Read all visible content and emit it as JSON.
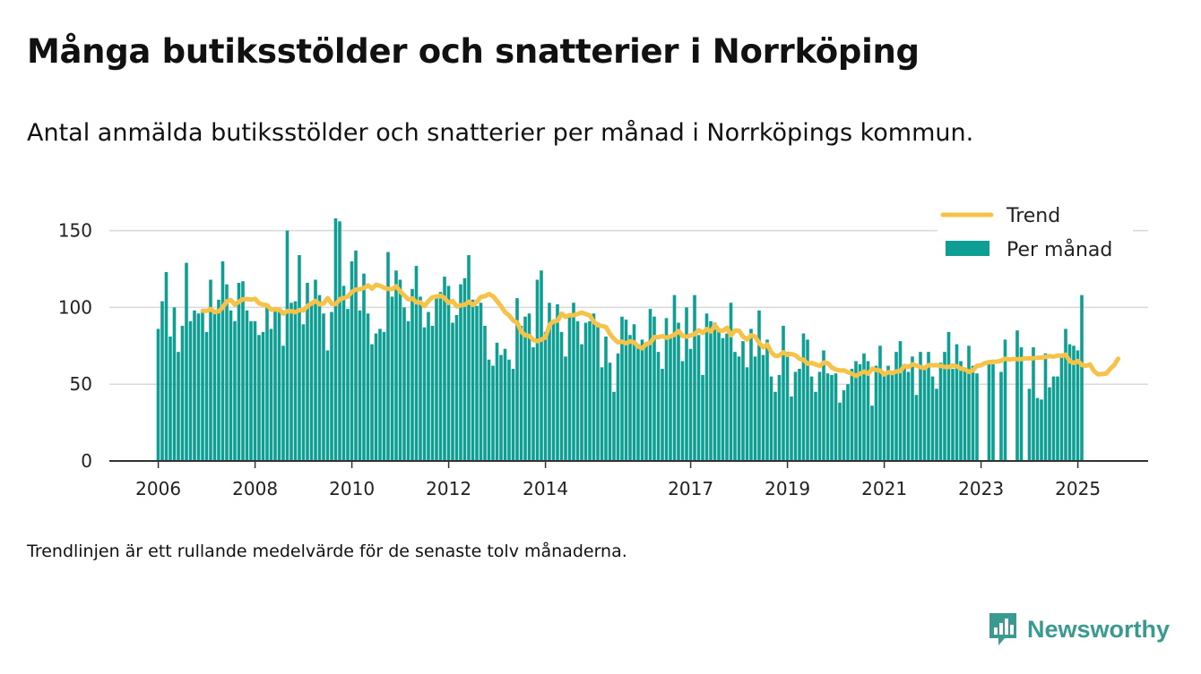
{
  "title": "Många butiksstölder och snatterier i Norrköping",
  "subtitle": "Antal anmälda butiksstölder och snatterier per månad i Norrköpings kommun.",
  "footnote": "Trendlinjen är ett rullande medelvärde för de senaste tolv månaderna.",
  "brand": {
    "name": "Newsworthy",
    "icon": "newsworthy-logo-icon"
  },
  "colors": {
    "bars": "#0e9e93",
    "trend": "#f6c247",
    "grid": "#d9d9d9",
    "axis": "#333333",
    "brand": "#3a9a91"
  },
  "chart_data": {
    "type": "bar",
    "start": "2006-01",
    "x_ticks": [
      "2006",
      "2008",
      "2010",
      "2012",
      "2014",
      "2017",
      "2019",
      "2021",
      "2023",
      "2025"
    ],
    "y_ticks": [
      "0",
      "50",
      "100",
      "150"
    ],
    "ylim": [
      0,
      165
    ],
    "grid": true,
    "legend_position": "top-right",
    "series": [
      {
        "name": "Per månad",
        "type": "bar",
        "values": [
          86,
          104,
          123,
          81,
          100,
          71,
          88,
          129,
          91,
          98,
          96,
          97,
          84,
          118,
          97,
          105,
          130,
          115,
          98,
          91,
          116,
          117,
          98,
          91,
          91,
          82,
          84,
          100,
          86,
          100,
          97,
          75,
          150,
          103,
          104,
          134,
          89,
          116,
          104,
          118,
          108,
          96,
          72,
          97,
          158,
          156,
          114,
          99,
          130,
          137,
          98,
          122,
          96,
          76,
          83,
          86,
          84,
          136,
          107,
          124,
          118,
          100,
          91,
          112,
          127,
          107,
          87,
          97,
          88,
          108,
          110,
          120,
          114,
          90,
          95,
          115,
          119,
          134,
          105,
          101,
          103,
          88,
          66,
          62,
          77,
          69,
          73,
          66,
          60,
          106,
          88,
          94,
          96,
          74,
          118,
          124,
          84,
          103,
          92,
          102,
          84,
          68,
          95,
          103,
          91,
          76,
          90,
          91,
          96,
          90,
          61,
          81,
          64,
          45,
          70,
          94,
          92,
          82,
          89,
          76,
          79,
          76,
          99,
          94,
          71,
          60,
          93,
          80,
          108,
          90,
          65,
          100,
          73,
          108,
          82,
          56,
          96,
          91,
          90,
          86,
          80,
          83,
          103,
          71,
          68,
          78,
          61,
          86,
          68,
          98,
          69,
          79,
          55,
          45,
          56,
          88,
          71,
          42,
          58,
          60,
          83,
          79,
          55,
          45,
          58,
          72,
          57,
          56,
          57,
          38,
          46,
          50,
          60,
          65,
          63,
          70,
          65,
          36,
          62,
          75,
          56,
          62,
          58,
          71,
          78,
          61,
          58,
          68,
          43,
          71,
          62,
          71,
          55,
          47,
          64,
          71,
          84,
          60,
          76,
          65,
          60,
          75,
          62,
          57,
          0,
          0,
          65,
          63,
          0,
          58,
          79,
          87,
          59,
          85,
          74,
          36,
          47,
          74,
          41,
          40,
          70,
          48,
          55,
          55,
          70,
          86,
          76,
          75,
          72,
          108
        ],
        "missing": [
          211,
          212,
          215
        ]
      },
      {
        "name": "Trend",
        "type": "line",
        "values": [
          null,
          null,
          null,
          null,
          null,
          null,
          null,
          null,
          null,
          null,
          null,
          97.8,
          97.7,
          98.9,
          96.9,
          97.5,
          100.0,
          104.0,
          104.8,
          101.8,
          103.7,
          105.3,
          105.5,
          105.0,
          105.6,
          102.6,
          101.8,
          101.4,
          98.5,
          98.7,
          98.6,
          95.9,
          97.6,
          97.5,
          96.8,
          98.3,
          98.0,
          100.9,
          102.6,
          104.2,
          102.0,
          102.5,
          106.1,
          102.3,
          102.1,
          105.3,
          106.1,
          107.0,
          110.1,
          111.6,
          111.8,
          112.7,
          114.3,
          112.2,
          114.8,
          114.0,
          112.8,
          112.0,
          111.9,
          113.8,
          110.3,
          107.8,
          105.2,
          105.8,
          103.2,
          103.3,
          100.8,
          104.2,
          106.6,
          107.1,
          107.6,
          106.1,
          102.8,
          104.2,
          100.6,
          101.4,
          101.7,
          103.7,
          101.6,
          103.7,
          106.8,
          107.3,
          108.7,
          107.3,
          104.1,
          100.7,
          96.8,
          94.8,
          91.4,
          90.1,
          84.2,
          81.8,
          81.4,
          78.8,
          78.0,
          79.1,
          80.4,
          88.6,
          90.9,
          91.3,
          95.9,
          93.8,
          95.0,
          94.9,
          95.7,
          96.6,
          95.6,
          94.8,
          90.6,
          88.4,
          87.8,
          87.2,
          82.7,
          79.5,
          77.2,
          77.7,
          76.6,
          77.9,
          77.2,
          74.4,
          73.4,
          76.2,
          76.9,
          80.7,
          80.6,
          81.3,
          80.2,
          81.1,
          82.2,
          84.6,
          81.4,
          80.9,
          81.8,
          82.5,
          85.2,
          83.4,
          85.9,
          84.3,
          88.3,
          85.0,
          84.8,
          86.7,
          81.8,
          85.0,
          84.8,
          80.9,
          79.1,
          81.8,
          81.0,
          76.7,
          74.0,
          75.9,
          70.7,
          68.3,
          68.7,
          70.8,
          69.0,
          69.7,
          68.8,
          66.5,
          65.9,
          63.3,
          63.8,
          62.8,
          61.9,
          64.1,
          63.7,
          60.8,
          59.6,
          58.9,
          59.0,
          57.8,
          56.8,
          55.4,
          56.9,
          58.2,
          56.8,
          60.1,
          59.2,
          58.9,
          56.3,
          57.8,
          57.2,
          58.3,
          58.5,
          62.0,
          61.2,
          62.9,
          62.1,
          61.1,
          60.5,
          62.4,
          62.3,
          62.4,
          61.9,
          61.2,
          61.2,
          62.2,
          61.6,
          60.1,
          59.7,
          58.0,
          59.0,
          62.0,
          62.3,
          63.8,
          64.3,
          64.6,
          64.7,
          65.2,
          66.6,
          66.0,
          66.4,
          66.3,
          66.3,
          66.8,
          66.8,
          66.9,
          67.2,
          67.3,
          67.8,
          68.3,
          67.9,
          68.7,
          68.5,
          69.2,
          64.9,
          63.8,
          65.1,
          62.5,
          62.0,
          62.9,
          58.5,
          56.4,
          56.6,
          56.9,
          59.9,
          62.4,
          66.6
        ]
      }
    ]
  }
}
